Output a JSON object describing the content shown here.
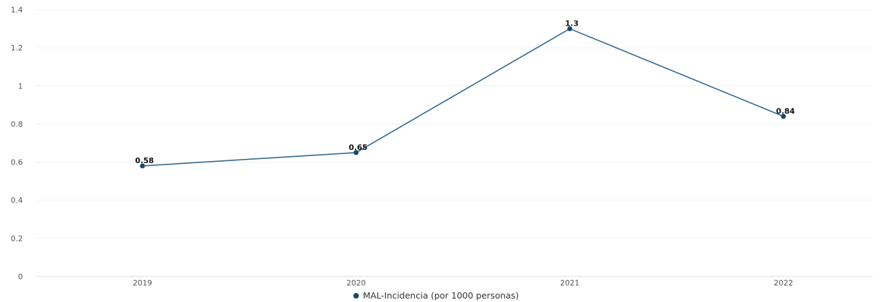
{
  "chart_data": {
    "type": "line",
    "categories": [
      "2019",
      "2020",
      "2021",
      "2022"
    ],
    "series": [
      {
        "name": "MAL-Incidencia (por 1000 personas)",
        "values": [
          0.58,
          0.65,
          1.3,
          0.84
        ],
        "data_labels": [
          "0.58",
          "0.65",
          "1.3",
          "0.84"
        ],
        "color": "#2f6690",
        "marker_color": "#17486f"
      }
    ],
    "y_ticks": [
      0,
      0.2,
      0.4,
      0.6,
      0.8,
      1,
      1.2,
      1.4
    ],
    "y_tick_labels": [
      "0",
      "0.2",
      "0.4",
      "0.6",
      "0.8",
      "1",
      "1.2",
      "1.4"
    ],
    "ylim": [
      0,
      1.4
    ],
    "grid": true,
    "grid_color": "#f0f0f0",
    "axis_color": "#d8dde8",
    "legend_position": "bottom-center"
  }
}
